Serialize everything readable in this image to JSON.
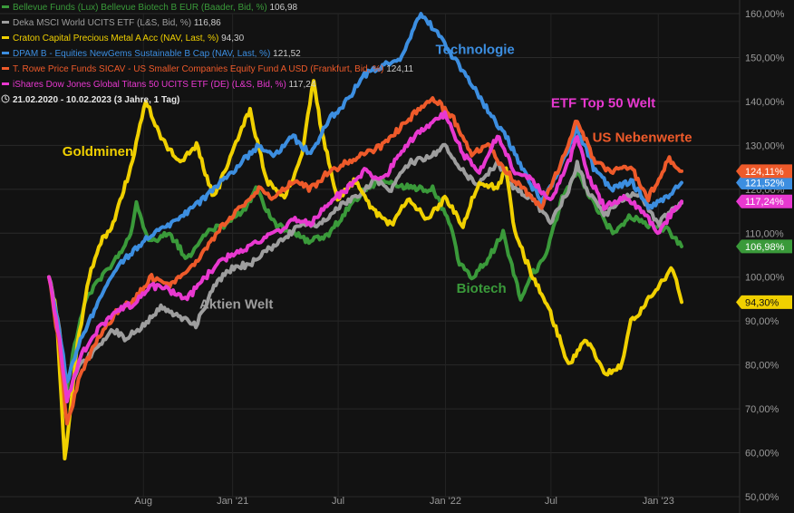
{
  "chart_data": {
    "type": "line",
    "period": "21.02.2020 - 10.02.2023",
    "period_detail": "(3 Jahre, 1 Tag)",
    "y_unit": "%",
    "ylim": [
      50,
      160
    ],
    "yticks": [
      "160,00%",
      "150,00%",
      "140,00%",
      "130,00%",
      "120,00%",
      "110,00%",
      "100,00%",
      "90,00%",
      "80,00%",
      "70,00%",
      "60,00%",
      "50,00%"
    ],
    "ytick_values": [
      160,
      150,
      140,
      130,
      120,
      110,
      100,
      90,
      80,
      70,
      60,
      50
    ],
    "xlim": [
      "2020-02-21",
      "2023-02-10"
    ],
    "xticks": [
      {
        "label": "Aug",
        "date": "2020-08-01"
      },
      {
        "label": "Jan '21",
        "date": "2021-01-01"
      },
      {
        "label": "Jul",
        "date": "2021-07-01"
      },
      {
        "label": "Jan '22",
        "date": "2022-01-01"
      },
      {
        "label": "Jul",
        "date": "2022-07-01"
      },
      {
        "label": "Jan '23",
        "date": "2023-01-01"
      }
    ],
    "grid": true,
    "legend_position": "top-left",
    "series": [
      {
        "legend": "Bellevue Funds (Lux) Bellevue Biotech B EUR (Baader, Bid, %)",
        "last_label": "106,98",
        "badge": "106,98%",
        "color": "#3a9a3a",
        "points": [
          [
            "2020-02-21",
            100
          ],
          [
            "2020-03-10",
            86
          ],
          [
            "2020-03-20",
            72
          ],
          [
            "2020-04-05",
            85
          ],
          [
            "2020-04-25",
            95
          ],
          [
            "2020-05-20",
            100
          ],
          [
            "2020-06-15",
            104
          ],
          [
            "2020-07-10",
            110
          ],
          [
            "2020-07-20",
            117
          ],
          [
            "2020-08-10",
            108
          ],
          [
            "2020-09-15",
            110
          ],
          [
            "2020-10-15",
            104
          ],
          [
            "2020-11-15",
            110
          ],
          [
            "2020-12-20",
            112
          ],
          [
            "2021-01-20",
            115
          ],
          [
            "2021-02-10",
            120
          ],
          [
            "2021-03-15",
            112
          ],
          [
            "2021-04-15",
            110
          ],
          [
            "2021-05-15",
            108
          ],
          [
            "2021-06-15",
            110
          ],
          [
            "2021-07-15",
            115
          ],
          [
            "2021-08-15",
            120
          ],
          [
            "2021-09-15",
            122
          ],
          [
            "2021-10-15",
            121
          ],
          [
            "2021-11-15",
            120
          ],
          [
            "2021-12-10",
            120
          ],
          [
            "2022-01-10",
            112
          ],
          [
            "2022-01-25",
            103
          ],
          [
            "2022-02-15",
            100
          ],
          [
            "2022-03-15",
            104
          ],
          [
            "2022-04-10",
            110
          ],
          [
            "2022-05-10",
            95
          ],
          [
            "2022-05-25",
            100
          ],
          [
            "2022-06-20",
            104
          ],
          [
            "2022-07-20",
            118
          ],
          [
            "2022-08-15",
            124
          ],
          [
            "2022-09-15",
            116
          ],
          [
            "2022-10-15",
            110
          ],
          [
            "2022-11-15",
            114
          ],
          [
            "2022-12-15",
            112
          ],
          [
            "2023-01-15",
            111
          ],
          [
            "2023-02-10",
            106.98
          ]
        ]
      },
      {
        "legend": "Deka MSCI World UCITS ETF (L&S, Bid, %)",
        "last_label": "116,86",
        "badge": "",
        "color": "#9e9e9e",
        "points": [
          [
            "2020-02-21",
            100
          ],
          [
            "2020-03-10",
            88
          ],
          [
            "2020-03-23",
            72
          ],
          [
            "2020-04-15",
            80
          ],
          [
            "2020-05-15",
            84
          ],
          [
            "2020-06-10",
            88
          ],
          [
            "2020-06-30",
            86
          ],
          [
            "2020-07-31",
            89
          ],
          [
            "2020-08-31",
            93
          ],
          [
            "2020-09-30",
            91
          ],
          [
            "2020-10-30",
            89
          ],
          [
            "2020-11-30",
            98
          ],
          [
            "2020-12-31",
            102
          ],
          [
            "2021-01-31",
            103
          ],
          [
            "2021-02-28",
            106
          ],
          [
            "2021-03-31",
            109
          ],
          [
            "2021-04-30",
            112
          ],
          [
            "2021-05-31",
            112
          ],
          [
            "2021-06-30",
            116
          ],
          [
            "2021-07-31",
            118
          ],
          [
            "2021-08-31",
            122
          ],
          [
            "2021-09-30",
            120
          ],
          [
            "2021-10-31",
            126
          ],
          [
            "2021-11-30",
            127
          ],
          [
            "2021-12-31",
            130
          ],
          [
            "2022-01-31",
            124
          ],
          [
            "2022-02-28",
            121
          ],
          [
            "2022-03-31",
            126
          ],
          [
            "2022-04-30",
            120
          ],
          [
            "2022-05-31",
            118
          ],
          [
            "2022-06-30",
            112
          ],
          [
            "2022-07-31",
            120
          ],
          [
            "2022-08-15",
            126
          ],
          [
            "2022-08-31",
            120
          ],
          [
            "2022-09-30",
            114
          ],
          [
            "2022-10-31",
            118
          ],
          [
            "2022-11-30",
            119
          ],
          [
            "2022-12-31",
            112
          ],
          [
            "2023-01-31",
            116
          ],
          [
            "2023-02-10",
            116.86
          ]
        ]
      },
      {
        "legend": "Craton Capital Precious Metal A Acc (NAV, Last, %)",
        "last_label": "94,30",
        "badge": "94,30%",
        "color": "#f0d000",
        "points": [
          [
            "2020-02-21",
            100
          ],
          [
            "2020-03-05",
            92
          ],
          [
            "2020-03-19",
            58
          ],
          [
            "2020-04-10",
            85
          ],
          [
            "2020-04-30",
            100
          ],
          [
            "2020-05-20",
            108
          ],
          [
            "2020-06-10",
            112
          ],
          [
            "2020-07-10",
            125
          ],
          [
            "2020-08-05",
            140
          ],
          [
            "2020-08-31",
            132
          ],
          [
            "2020-09-30",
            126
          ],
          [
            "2020-10-31",
            130
          ],
          [
            "2020-11-30",
            118
          ],
          [
            "2020-12-31",
            128
          ],
          [
            "2021-01-20",
            135
          ],
          [
            "2021-01-31",
            138
          ],
          [
            "2021-02-28",
            122
          ],
          [
            "2021-03-31",
            118
          ],
          [
            "2021-04-30",
            128
          ],
          [
            "2021-05-20",
            145
          ],
          [
            "2021-05-31",
            135
          ],
          [
            "2021-06-30",
            118
          ],
          [
            "2021-07-31",
            122
          ],
          [
            "2021-08-31",
            115
          ],
          [
            "2021-09-30",
            112
          ],
          [
            "2021-10-31",
            118
          ],
          [
            "2021-11-30",
            113
          ],
          [
            "2021-12-31",
            118
          ],
          [
            "2022-01-31",
            112
          ],
          [
            "2022-02-28",
            122
          ],
          [
            "2022-03-31",
            120
          ],
          [
            "2022-04-15",
            125
          ],
          [
            "2022-04-30",
            110
          ],
          [
            "2022-05-31",
            100
          ],
          [
            "2022-06-30",
            92
          ],
          [
            "2022-07-31",
            80
          ],
          [
            "2022-08-31",
            86
          ],
          [
            "2022-09-30",
            78
          ],
          [
            "2022-10-31",
            80
          ],
          [
            "2022-11-15",
            90
          ],
          [
            "2022-11-30",
            92
          ],
          [
            "2022-12-31",
            98
          ],
          [
            "2023-01-26",
            102
          ],
          [
            "2023-02-10",
            94.3
          ]
        ]
      },
      {
        "legend": "DPAM B - Equities NewGems Sustainable B Cap (NAV, Last, %)",
        "last_label": "121,52",
        "badge": "121,52%",
        "color": "#3c8ee0",
        "points": [
          [
            "2020-02-21",
            100
          ],
          [
            "2020-03-10",
            88
          ],
          [
            "2020-03-23",
            76
          ],
          [
            "2020-04-15",
            86
          ],
          [
            "2020-05-15",
            94
          ],
          [
            "2020-06-15",
            102
          ],
          [
            "2020-07-15",
            106
          ],
          [
            "2020-08-15",
            110
          ],
          [
            "2020-09-15",
            112
          ],
          [
            "2020-10-15",
            115
          ],
          [
            "2020-11-15",
            118
          ],
          [
            "2020-12-15",
            122
          ],
          [
            "2021-01-15",
            126
          ],
          [
            "2021-02-15",
            130
          ],
          [
            "2021-03-15",
            128
          ],
          [
            "2021-04-15",
            132
          ],
          [
            "2021-05-15",
            128
          ],
          [
            "2021-06-15",
            136
          ],
          [
            "2021-07-15",
            140
          ],
          [
            "2021-08-15",
            146
          ],
          [
            "2021-09-15",
            148
          ],
          [
            "2021-10-15",
            150
          ],
          [
            "2021-11-20",
            160
          ],
          [
            "2021-12-15",
            156
          ],
          [
            "2022-01-15",
            150
          ],
          [
            "2022-02-15",
            144
          ],
          [
            "2022-03-15",
            138
          ],
          [
            "2022-04-15",
            132
          ],
          [
            "2022-05-15",
            124
          ],
          [
            "2022-06-15",
            117
          ],
          [
            "2022-07-15",
            124
          ],
          [
            "2022-08-15",
            134
          ],
          [
            "2022-09-15",
            124
          ],
          [
            "2022-10-15",
            120
          ],
          [
            "2022-11-15",
            122
          ],
          [
            "2022-12-15",
            116
          ],
          [
            "2023-01-15",
            118
          ],
          [
            "2023-02-10",
            121.52
          ]
        ]
      },
      {
        "legend": "T. Rowe Price Funds SICAV - US Smaller Companies Equity Fund A USD (Frankfurt, Bid, %)",
        "last_label": "124,11",
        "badge": "124,11%",
        "color": "#ee5a2a",
        "points": [
          [
            "2020-02-21",
            100
          ],
          [
            "2020-03-10",
            84
          ],
          [
            "2020-03-23",
            66
          ],
          [
            "2020-04-15",
            78
          ],
          [
            "2020-05-15",
            86
          ],
          [
            "2020-06-15",
            92
          ],
          [
            "2020-07-15",
            95
          ],
          [
            "2020-08-15",
            100
          ],
          [
            "2020-09-15",
            98
          ],
          [
            "2020-10-15",
            101
          ],
          [
            "2020-11-15",
            106
          ],
          [
            "2020-12-15",
            112
          ],
          [
            "2021-01-15",
            116
          ],
          [
            "2021-02-15",
            120
          ],
          [
            "2021-03-15",
            118
          ],
          [
            "2021-04-15",
            122
          ],
          [
            "2021-05-15",
            120
          ],
          [
            "2021-06-15",
            124
          ],
          [
            "2021-07-15",
            126
          ],
          [
            "2021-08-15",
            128
          ],
          [
            "2021-09-15",
            130
          ],
          [
            "2021-10-15",
            134
          ],
          [
            "2021-11-15",
            138
          ],
          [
            "2021-12-10",
            141
          ],
          [
            "2022-01-15",
            136
          ],
          [
            "2022-02-15",
            128
          ],
          [
            "2022-03-15",
            130
          ],
          [
            "2022-04-15",
            124
          ],
          [
            "2022-05-15",
            120
          ],
          [
            "2022-06-15",
            116
          ],
          [
            "2022-07-15",
            125
          ],
          [
            "2022-08-15",
            136
          ],
          [
            "2022-09-15",
            126
          ],
          [
            "2022-10-15",
            124
          ],
          [
            "2022-11-15",
            125
          ],
          [
            "2022-12-15",
            118
          ],
          [
            "2023-01-20",
            127
          ],
          [
            "2023-02-10",
            124.11
          ]
        ]
      },
      {
        "legend": "iShares Dow Jones Global Titans 50 UCITS ETF (DE) (L&S, Bid, %)",
        "last_label": "117,24",
        "badge": "117,24%",
        "color": "#e838d0",
        "points": [
          [
            "2020-02-21",
            100
          ],
          [
            "2020-03-10",
            86
          ],
          [
            "2020-03-23",
            72
          ],
          [
            "2020-04-15",
            82
          ],
          [
            "2020-05-15",
            88
          ],
          [
            "2020-06-15",
            92
          ],
          [
            "2020-07-15",
            94
          ],
          [
            "2020-08-15",
            98
          ],
          [
            "2020-09-15",
            97
          ],
          [
            "2020-10-15",
            95
          ],
          [
            "2020-11-15",
            100
          ],
          [
            "2020-12-15",
            104
          ],
          [
            "2021-01-15",
            106
          ],
          [
            "2021-02-15",
            108
          ],
          [
            "2021-03-15",
            110
          ],
          [
            "2021-04-15",
            113
          ],
          [
            "2021-05-15",
            112
          ],
          [
            "2021-06-15",
            117
          ],
          [
            "2021-07-15",
            120
          ],
          [
            "2021-08-15",
            124
          ],
          [
            "2021-09-15",
            122
          ],
          [
            "2021-10-15",
            128
          ],
          [
            "2021-11-15",
            133
          ],
          [
            "2021-12-31",
            137
          ],
          [
            "2022-01-31",
            128
          ],
          [
            "2022-02-28",
            124
          ],
          [
            "2022-03-31",
            132
          ],
          [
            "2022-04-30",
            124
          ],
          [
            "2022-05-31",
            122
          ],
          [
            "2022-06-30",
            117
          ],
          [
            "2022-07-31",
            126
          ],
          [
            "2022-08-15",
            132
          ],
          [
            "2022-08-31",
            124
          ],
          [
            "2022-09-30",
            116
          ],
          [
            "2022-10-31",
            118
          ],
          [
            "2022-11-30",
            116
          ],
          [
            "2022-12-31",
            110
          ],
          [
            "2023-01-31",
            116
          ],
          [
            "2023-02-10",
            117.24
          ]
        ]
      }
    ],
    "annotations": [
      {
        "text": "Technologie",
        "color": "#3c8ee0",
        "date": "2021-12-15",
        "value": 150.8
      },
      {
        "text": "ETF Top 50 Welt",
        "color": "#e838d0",
        "date": "2022-07-01",
        "value": 138.6
      },
      {
        "text": "US Nebenwerte",
        "color": "#ee5a2a",
        "date": "2022-09-10",
        "value": 130.8
      },
      {
        "text": "Goldminen",
        "color": "#f0d000",
        "date": "2020-03-15",
        "value": 127.6
      },
      {
        "text": "Aktien Welt",
        "color": "#9e9e9e",
        "date": "2020-11-05",
        "value": 92.8
      },
      {
        "text": "Biotech",
        "color": "#3a9a3a",
        "date": "2022-01-20",
        "value": 96.4
      }
    ]
  }
}
